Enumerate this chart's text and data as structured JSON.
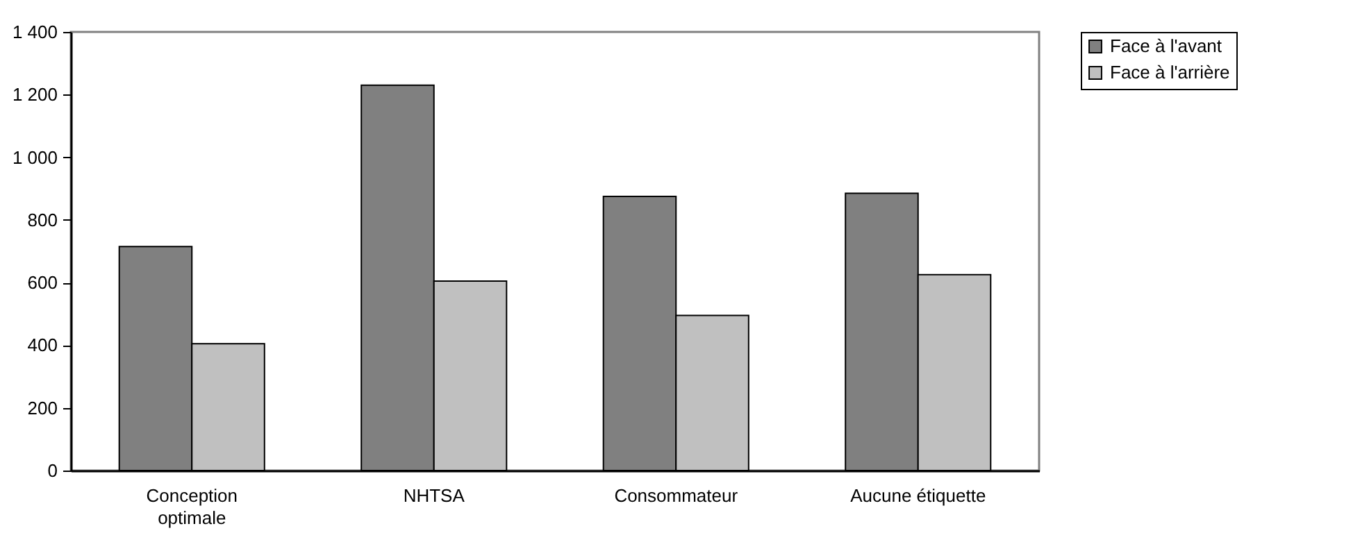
{
  "chart_data": {
    "type": "bar",
    "categories": [
      "Conception optimale",
      "NHTSA",
      "Consommateur",
      "Aucune étiquette"
    ],
    "series": [
      {
        "name": "Face à l'avant",
        "color": "#808080",
        "values": [
          715,
          1230,
          875,
          885
        ]
      },
      {
        "name": "Face à l'arrière",
        "color": "#c0c0c0",
        "values": [
          405,
          605,
          495,
          625
        ]
      }
    ],
    "ylim": [
      0,
      1400
    ],
    "yticks": [
      0,
      200,
      400,
      600,
      800,
      {
        "value": 1000,
        "label": "1 000"
      },
      {
        "value": 1200,
        "label": "1 200"
      },
      {
        "value": 1400,
        "label": "1 400"
      }
    ],
    "grid": false,
    "legend": "right"
  }
}
